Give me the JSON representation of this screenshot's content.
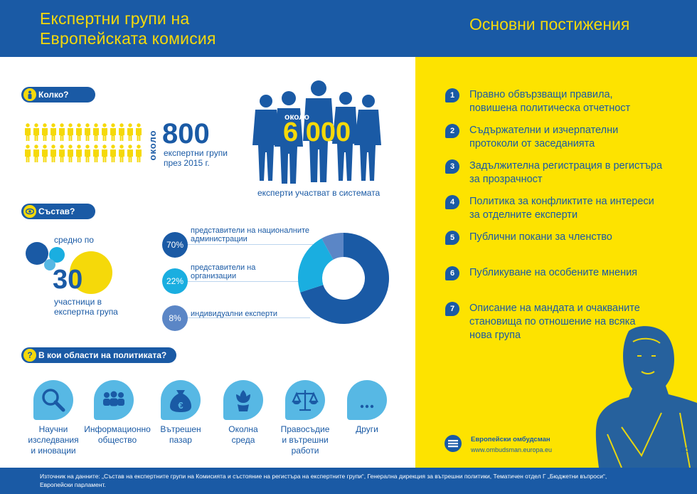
{
  "header": {
    "title_line1": "Експертни групи на",
    "title_line2": "Европейската комисия",
    "right_title": "Основни постижения"
  },
  "how_many": {
    "label": "Колко?",
    "around": "около",
    "groups_value": "800",
    "groups_line1": "експертни групи",
    "groups_line2": "през 2015 г.",
    "experts_around": "около",
    "experts_value": "6 000",
    "experts_caption": "експерти участват в системата"
  },
  "composition": {
    "label": "Състав?",
    "avg_prefix": "средно по",
    "avg_value": "30",
    "avg_line1": "участници в",
    "avg_line2": "експертна група",
    "shares": [
      {
        "pct": "70%",
        "value": 70,
        "line1": "представители на националните",
        "line2": "администрации",
        "color": "#1a5aa5"
      },
      {
        "pct": "22%",
        "value": 22,
        "line1": "представители на",
        "line2": "организации",
        "color": "#1aaee0"
      },
      {
        "pct": "8%",
        "value": 8,
        "line1": "индивидуални експерти",
        "line2": "",
        "color": "#5b86c6"
      }
    ]
  },
  "areas": {
    "label": "В кои области на политиката?",
    "items": [
      {
        "icon": "magnifier-icon",
        "line1": "Научни",
        "line2": "изследвания",
        "line3": "и иновации"
      },
      {
        "icon": "people-icon",
        "line1": "Информационно",
        "line2": "общество",
        "line3": ""
      },
      {
        "icon": "euro-bag-icon",
        "line1": "Вътрешен",
        "line2": "пазар",
        "line3": ""
      },
      {
        "icon": "flower-icon",
        "line1": "Околна",
        "line2": "среда",
        "line3": ""
      },
      {
        "icon": "scales-icon",
        "line1": "Правосъдие",
        "line2": "и вътрешни",
        "line3": "работи"
      },
      {
        "icon": "dots-icon",
        "line1": "Други",
        "line2": "",
        "line3": ""
      }
    ]
  },
  "achievements": [
    {
      "num": "1",
      "line1": "Правно обвързващи правила,",
      "line2": "повишена политическа отчетност",
      "line3": ""
    },
    {
      "num": "2",
      "line1": "Съдържателни и изчерпателни",
      "line2": "протоколи от заседанията",
      "line3": ""
    },
    {
      "num": "3",
      "line1": "Задължителна регистрация в регистъра",
      "line2": "за прозрачност",
      "line3": ""
    },
    {
      "num": "4",
      "line1": "Политика за конфликтите на интереси",
      "line2": "за отделните експерти",
      "line3": ""
    },
    {
      "num": "5",
      "line1": "Публични покани за членство",
      "line2": "",
      "line3": ""
    },
    {
      "num": "6",
      "line1": "Публикуване на особените мнения",
      "line2": "",
      "line3": ""
    },
    {
      "num": "7",
      "line1": "Описание на мандата и очакваните",
      "line2": "становища по отношение на всяка",
      "line3": "нова група"
    }
  ],
  "ombudsman": {
    "title": "Европейски омбудсман",
    "url": "www.ombudsman.europa.eu",
    "lang": "BG"
  },
  "footer": {
    "line1": "Източник на данните: „Състав на експертните групи на Комисията и състояние на регистъра на експертните групи“, Генерална дирекция за вътрешни политики, Тематичен отдел Г „Бюджетни въпроси“,",
    "line2": "Европейски парламент."
  },
  "colors": {
    "blue": "#1a5aa5",
    "yellow": "#fde300",
    "light_blue": "#57b8e4",
    "cyan": "#1aaee0"
  }
}
